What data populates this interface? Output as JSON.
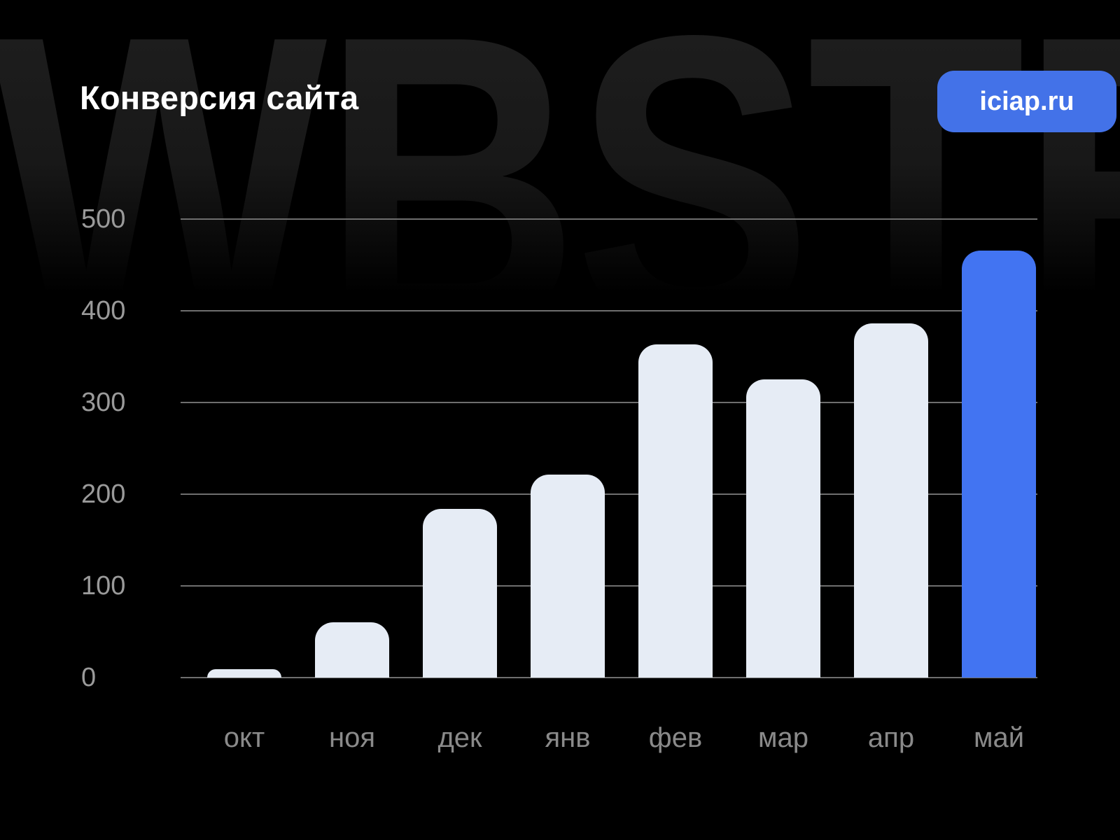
{
  "page": {
    "background_color": "#000000"
  },
  "watermark": {
    "text": "WBSTR"
  },
  "header": {
    "title": "Конверсия сайта",
    "badge": {
      "label": "iciap.ru",
      "background_color": "#4372E8",
      "text_color": "#FFFFFF"
    }
  },
  "chart_data": {
    "type": "bar",
    "title": "Конверсия сайта",
    "categories": [
      "окт",
      "ноя",
      "дек",
      "янв",
      "фев",
      "мар",
      "апр",
      "май"
    ],
    "values": [
      9,
      60,
      184,
      221,
      363,
      325,
      386,
      466
    ],
    "highlight_index": 7,
    "bar_color": "#E6ECF5",
    "highlight_color": "#4274F2",
    "grid_color": "#6E6E6E",
    "ytick_color": "#9A9A9A",
    "xtick_color": "#8A8A8A",
    "xlabel": "",
    "ylabel": "",
    "ylim": [
      0,
      500
    ],
    "yticks": [
      0,
      100,
      200,
      300,
      400,
      500
    ],
    "grid": true,
    "legend": false
  }
}
